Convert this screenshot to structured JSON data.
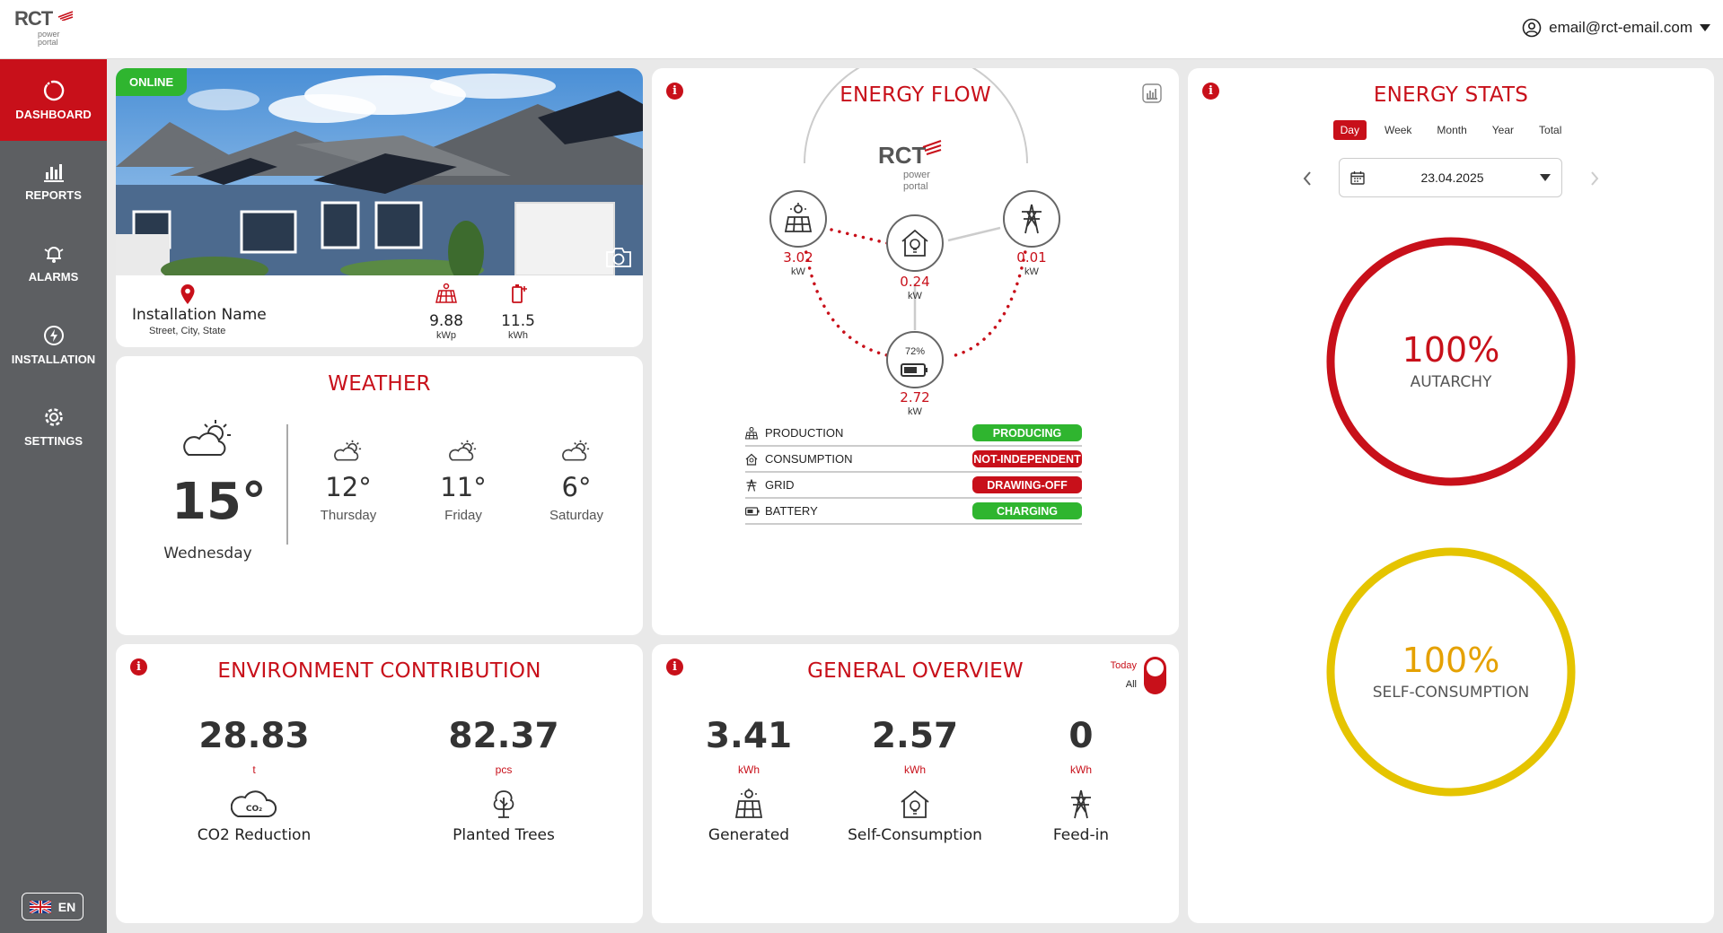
{
  "header": {
    "logo_text": "RCT",
    "logo_sub1": "power",
    "logo_sub2": "portal",
    "user_email": "email@rct-email.com"
  },
  "sidebar": {
    "items": [
      {
        "label": "DASHBOARD"
      },
      {
        "label": "REPORTS"
      },
      {
        "label": "ALARMS"
      },
      {
        "label": "INSTALLATION"
      },
      {
        "label": "SETTINGS"
      }
    ],
    "language": "EN"
  },
  "installation": {
    "status": "ONLINE",
    "name": "Installation Name",
    "address": "Street, City, State",
    "peak_power": "9.88",
    "peak_power_unit": "kWp",
    "battery_capacity": "11.5",
    "battery_capacity_unit": "kWh"
  },
  "weather": {
    "title": "WEATHER",
    "today": {
      "temp": "15°",
      "day": "Wednesday"
    },
    "forecast": [
      {
        "temp": "12°",
        "day": "Thursday"
      },
      {
        "temp": "11°",
        "day": "Friday"
      },
      {
        "temp": "6°",
        "day": "Saturday"
      }
    ]
  },
  "energy_flow": {
    "title": "ENERGY FLOW",
    "logo_text": "RCT",
    "logo_sub1": "power",
    "logo_sub2": "portal",
    "production": {
      "value": "3.02",
      "unit": "kW"
    },
    "consumption": {
      "value": "0.24",
      "unit": "kW"
    },
    "grid": {
      "value": "0.01",
      "unit": "kW"
    },
    "battery": {
      "value": "2.72",
      "unit": "kW",
      "soc": "72%"
    },
    "status": [
      {
        "label": "PRODUCTION",
        "badge": "PRODUCING",
        "color": "#2fb52f"
      },
      {
        "label": "CONSUMPTION",
        "badge": "NOT-INDEPENDENT",
        "color": "#c8101a"
      },
      {
        "label": "GRID",
        "badge": "DRAWING-OFF",
        "color": "#c8101a"
      },
      {
        "label": "BATTERY",
        "badge": "CHARGING",
        "color": "#2fb52f"
      }
    ]
  },
  "energy_stats": {
    "title": "ENERGY STATS",
    "tabs": [
      "Day",
      "Week",
      "Month",
      "Year",
      "Total"
    ],
    "active_tab": "Day",
    "date": "23.04.2025",
    "autarchy": {
      "value": "100%",
      "label": "AUTARCHY",
      "color": "#c8101a"
    },
    "self_consumption": {
      "value": "100%",
      "label": "SELF-CONSUMPTION",
      "color": "#e5c400"
    }
  },
  "environment": {
    "title": "ENVIRONMENT CONTRIBUTION",
    "co2": {
      "value": "28.83",
      "unit": "t",
      "label": "CO2 Reduction",
      "icon_text": "CO₂"
    },
    "trees": {
      "value": "82.37",
      "unit": "pcs",
      "label": "Planted Trees"
    }
  },
  "overview": {
    "title": "GENERAL OVERVIEW",
    "toggle_on": "Today",
    "toggle_off": "All",
    "generated": {
      "value": "3.41",
      "unit": "kWh",
      "label": "Generated"
    },
    "self_consumption": {
      "value": "2.57",
      "unit": "kWh",
      "label": "Self-Consumption"
    },
    "feed_in": {
      "value": "0",
      "unit": "kWh",
      "label": "Feed-in"
    }
  }
}
